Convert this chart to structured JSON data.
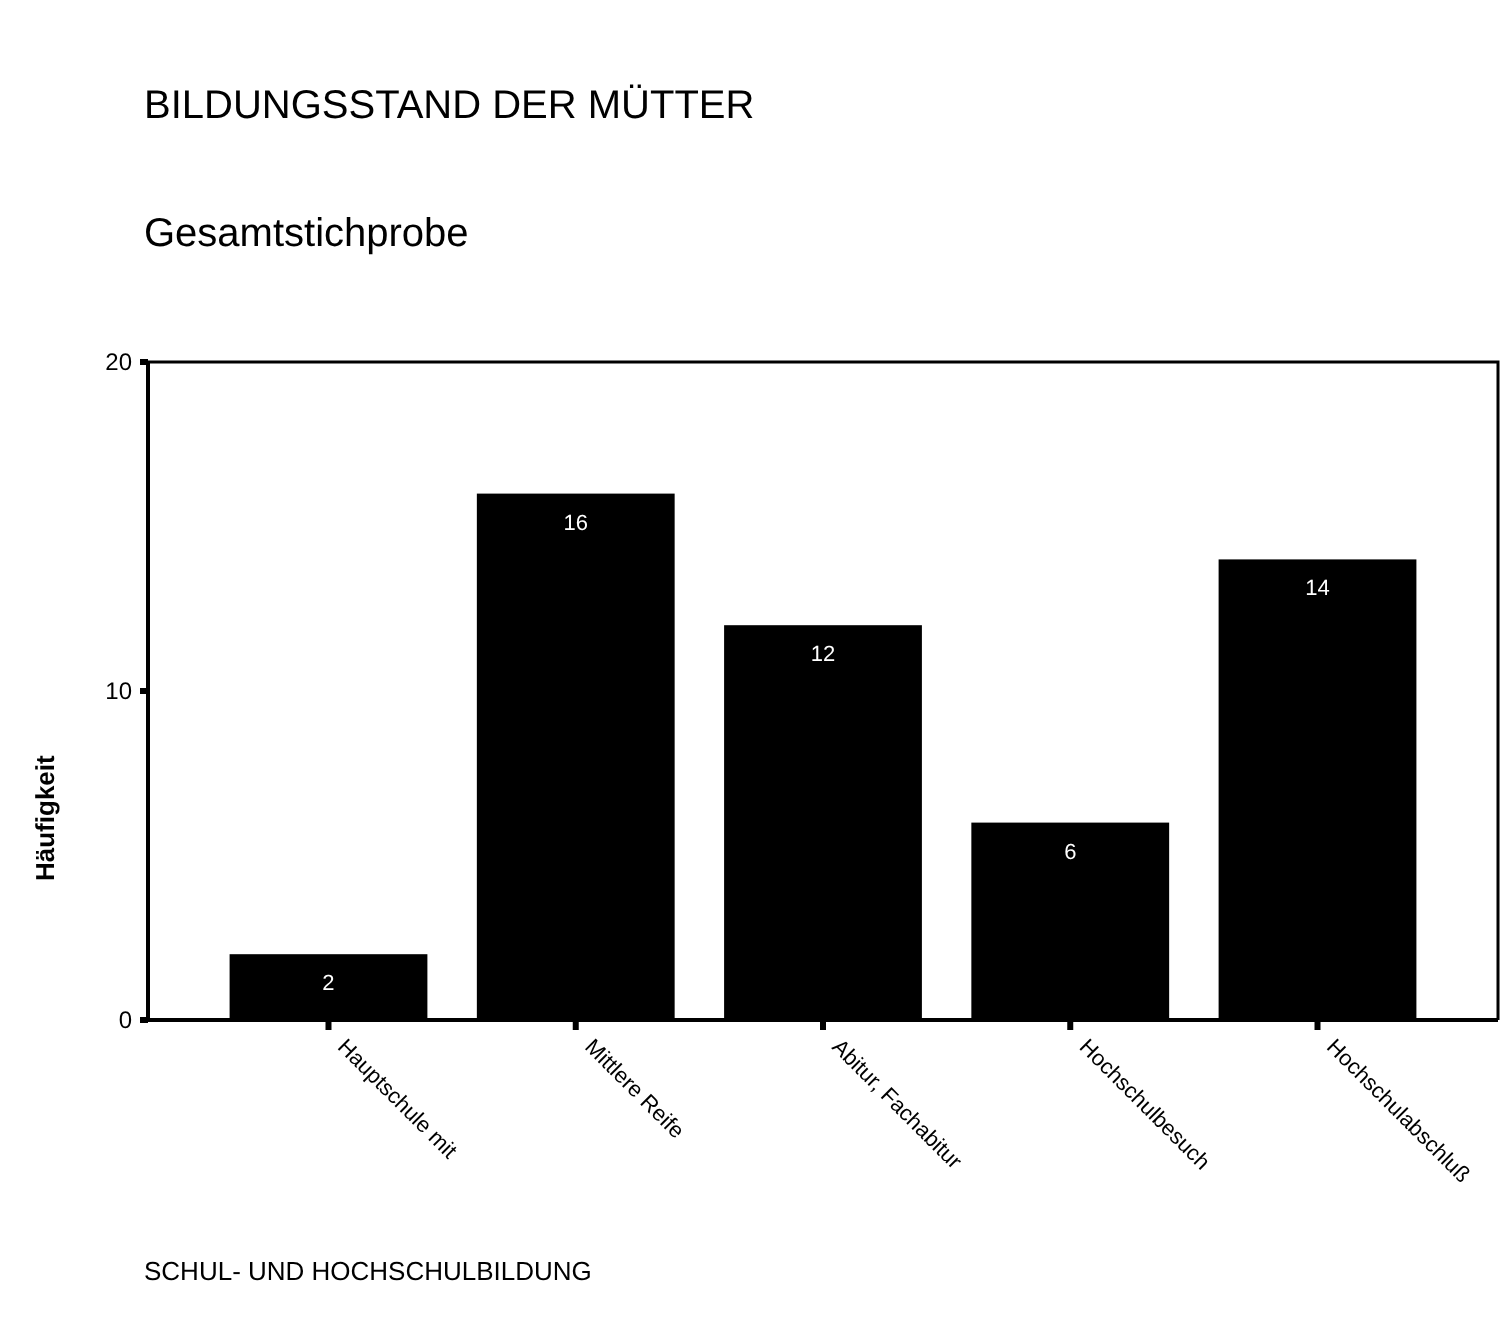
{
  "chart_data": {
    "type": "bar",
    "title": "BILDUNGSSTAND DER MÜTTER",
    "subtitle": "Gesamtstichprobe",
    "xlabel": "SCHUL- UND HOCHSCHULBILDUNG",
    "ylabel": "Häufigkeit",
    "categories": [
      "Hauptschule mit",
      "Mittlere Reife",
      "Abitur, Fachabitur",
      "Hochschulbesuch",
      "Hochschulabschluß"
    ],
    "values": [
      2,
      16,
      12,
      6,
      14
    ],
    "color": "#000000",
    "ylim": [
      0,
      20
    ],
    "yticks": [
      0,
      10,
      20
    ],
    "data_labels": true,
    "grid": false
  }
}
